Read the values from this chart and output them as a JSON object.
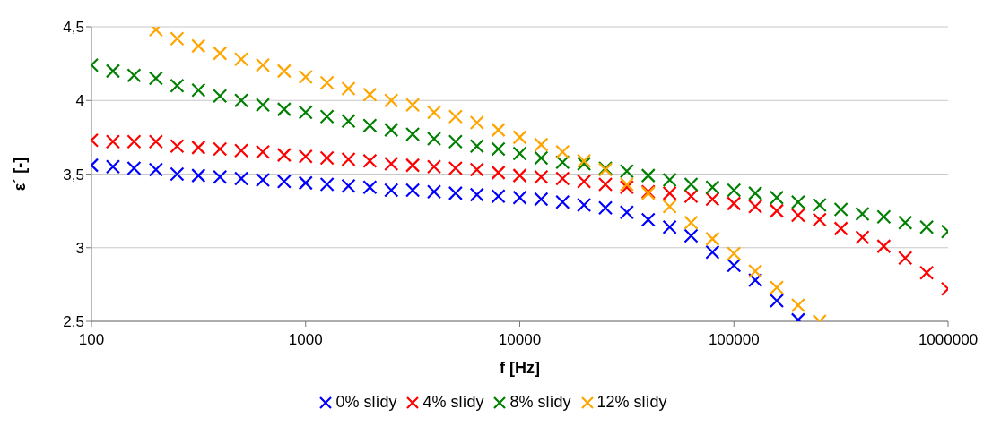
{
  "chart_data": {
    "type": "scatter",
    "xlabel": "f [Hz]",
    "ylabel": "ε´ [-]",
    "log": "x",
    "x": [
      100,
      126,
      158,
      200,
      251,
      316,
      398,
      501,
      631,
      794,
      1000,
      1259,
      1585,
      1995,
      2512,
      3162,
      3981,
      5012,
      6310,
      7943,
      10000,
      12589,
      15849,
      19953,
      25119,
      31623,
      39811,
      50119,
      63096,
      79433,
      100000,
      125893,
      158489,
      199526,
      251189,
      316228,
      398107,
      501187,
      630957,
      794328,
      1000000
    ],
    "xlim": [
      100,
      1000000
    ],
    "xticks": [
      100,
      1000,
      10000,
      100000,
      1000000
    ],
    "ylim": [
      2.5,
      4.5
    ],
    "yticks": [
      {
        "value": 2.5,
        "label": "2,5"
      },
      3,
      {
        "value": 3.5,
        "label": "3,5"
      },
      4,
      {
        "value": 4.5,
        "label": "4,5"
      }
    ],
    "grid": "y",
    "legend": "bottom",
    "marker": "cross",
    "series": [
      {
        "name": "0% slídy",
        "color": "#0000ff",
        "values": [
          3.56,
          3.55,
          3.54,
          3.53,
          3.5,
          3.49,
          3.48,
          3.47,
          3.46,
          3.45,
          3.44,
          3.43,
          3.42,
          3.41,
          3.39,
          3.39,
          3.38,
          3.37,
          3.36,
          3.35,
          3.34,
          3.33,
          3.31,
          3.29,
          3.27,
          3.24,
          3.19,
          3.14,
          3.08,
          2.97,
          2.88,
          2.78,
          2.64,
          2.51,
          null,
          null,
          null,
          null,
          null,
          null,
          null
        ]
      },
      {
        "name": "4% slídy",
        "color": "#ff0000",
        "values": [
          3.73,
          3.72,
          3.72,
          3.72,
          3.69,
          3.68,
          3.67,
          3.66,
          3.65,
          3.63,
          3.62,
          3.61,
          3.6,
          3.59,
          3.57,
          3.56,
          3.55,
          3.54,
          3.53,
          3.51,
          3.49,
          3.48,
          3.47,
          3.45,
          3.43,
          3.41,
          3.38,
          3.37,
          3.35,
          3.33,
          3.3,
          3.28,
          3.25,
          3.22,
          3.19,
          3.13,
          3.07,
          3.01,
          2.93,
          2.83,
          2.72
        ]
      },
      {
        "name": "8% slídy",
        "color": "#008000",
        "values": [
          4.24,
          4.2,
          4.17,
          4.15,
          4.1,
          4.07,
          4.03,
          4.0,
          3.97,
          3.94,
          3.92,
          3.89,
          3.86,
          3.83,
          3.8,
          3.77,
          3.74,
          3.72,
          3.69,
          3.67,
          3.64,
          3.61,
          3.58,
          3.57,
          3.54,
          3.52,
          3.49,
          3.46,
          3.43,
          3.41,
          3.39,
          3.37,
          3.34,
          3.31,
          3.29,
          3.26,
          3.23,
          3.21,
          3.17,
          3.14,
          3.11
        ]
      },
      {
        "name": "12% slídy",
        "color": "#ffa500",
        "values": [
          null,
          null,
          null,
          4.48,
          4.42,
          4.37,
          4.32,
          4.28,
          4.24,
          4.2,
          4.16,
          4.12,
          4.08,
          4.04,
          4.0,
          3.97,
          3.92,
          3.89,
          3.85,
          3.8,
          3.75,
          3.7,
          3.65,
          3.59,
          3.53,
          3.43,
          3.37,
          3.28,
          3.17,
          3.06,
          2.96,
          2.84,
          2.73,
          2.61,
          2.5,
          null,
          null,
          null,
          null,
          null,
          null
        ]
      }
    ]
  }
}
